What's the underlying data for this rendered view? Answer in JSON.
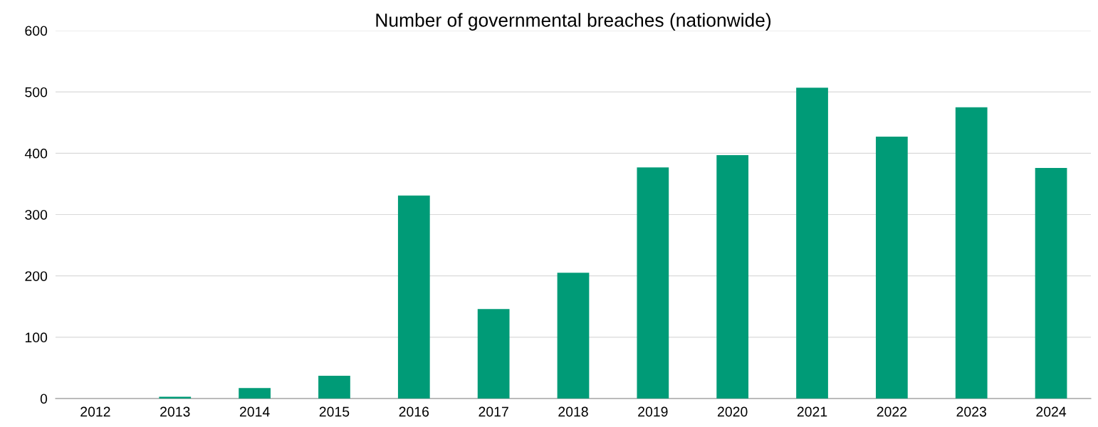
{
  "chart_data": {
    "type": "bar",
    "title": "Number of governmental breaches (nationwide)",
    "categories": [
      "2012",
      "2013",
      "2014",
      "2015",
      "2016",
      "2017",
      "2018",
      "2019",
      "2020",
      "2021",
      "2022",
      "2023",
      "2024"
    ],
    "values": [
      0,
      3,
      17,
      37,
      331,
      146,
      205,
      377,
      397,
      507,
      427,
      475,
      376
    ],
    "color": "#009b77",
    "ylim": [
      0,
      600
    ],
    "yticks": [
      0,
      100,
      200,
      300,
      400,
      500,
      600
    ],
    "grid": "y"
  }
}
